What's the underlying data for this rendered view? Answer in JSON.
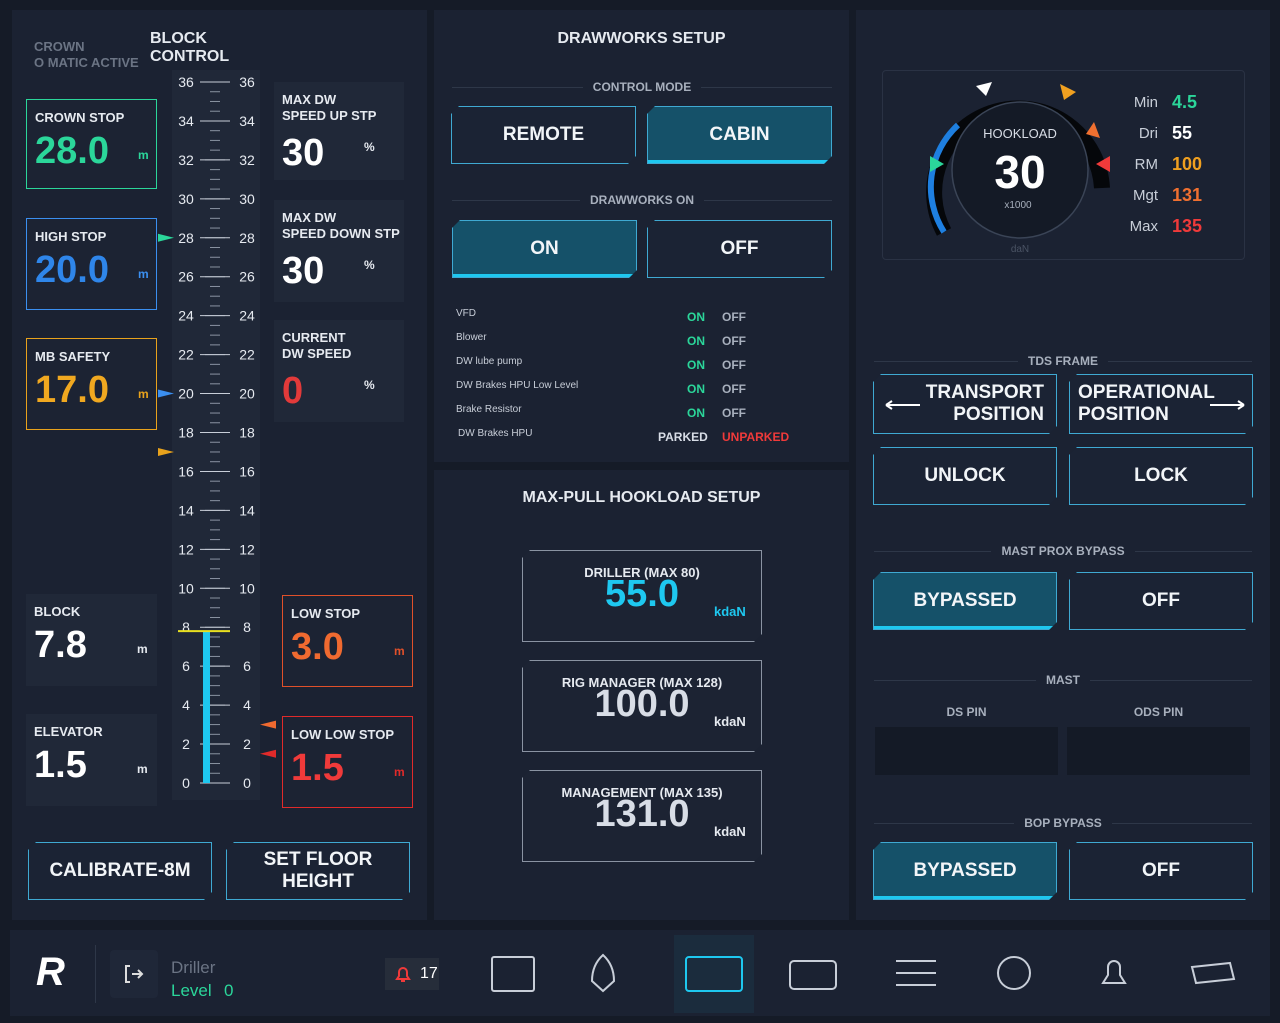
{
  "block_control": {
    "title": "BLOCK CONTROL",
    "crown_status": [
      "CROWN",
      "O MATIC ACTIVE"
    ],
    "crown_stop": {
      "label": "CROWN STOP",
      "value": "28.0",
      "unit": "m"
    },
    "high_stop": {
      "label": "HIGH STOP",
      "value": "20.0",
      "unit": "m"
    },
    "mb_safety": {
      "label": "MB SAFETY",
      "value": "17.0",
      "unit": "m"
    },
    "block": {
      "label": "BLOCK",
      "value": "7.8",
      "unit": "m"
    },
    "elevator": {
      "label": "ELEVATOR",
      "value": "1.5",
      "unit": "m"
    },
    "low_stop": {
      "label": "LOW STOP",
      "value": "3.0",
      "unit": "m"
    },
    "low_low_stop": {
      "label": "LOW LOW STOP",
      "value": "1.5",
      "unit": "m"
    },
    "max_dw_speed_up": {
      "label": [
        "MAX DW",
        "SPEED UP STP"
      ],
      "value": "30",
      "unit": "%"
    },
    "max_dw_speed_down": {
      "label": [
        "MAX DW",
        "SPEED DOWN STP"
      ],
      "value": "30",
      "unit": "%"
    },
    "current_dw_speed": {
      "label": [
        "CURRENT",
        "DW SPEED"
      ],
      "value": "0",
      "unit": "%"
    },
    "scale_ticks": [
      0,
      2,
      4,
      6,
      8,
      10,
      12,
      14,
      16,
      18,
      20,
      22,
      24,
      26,
      28,
      30,
      32,
      34,
      36
    ],
    "buttons": [
      "CALIBRATE-8M",
      "SET FLOOR HEIGHT"
    ]
  },
  "drawworks_setup": {
    "title": "DRAWWORKS SETUP",
    "control_mode": {
      "label": "CONTROL MODE",
      "options": [
        "REMOTE",
        "CABIN"
      ]
    },
    "drawworks_on": {
      "label": "DRAWWORKS ON",
      "options": [
        "ON",
        "OFF"
      ]
    },
    "status": [
      {
        "name": "VFD",
        "on": "ON",
        "off": "OFF"
      },
      {
        "name": "Blower",
        "on": "ON",
        "off": "OFF"
      },
      {
        "name": "DW lube pump",
        "on": "ON",
        "off": "OFF"
      },
      {
        "name": "DW Brakes HPU Low Level",
        "on": "ON",
        "off": "OFF"
      },
      {
        "name": "Brake Resistor",
        "on": "ON",
        "off": "OFF"
      },
      {
        "name": "DW Brakes HPU",
        "on": "PARKED",
        "off": "UNPARKED"
      }
    ]
  },
  "max_pull_setup": {
    "title": "MAX-PULL HOOKLOAD SETUP",
    "entries": [
      {
        "label": "DRILLER (MAX 80)",
        "value": "55.0",
        "unit": "kdaN"
      },
      {
        "label": "RIG MANAGER (MAX 128)",
        "value": "100.0",
        "unit": "kdaN"
      },
      {
        "label": "MANAGEMENT (MAX 135)",
        "value": "131.0",
        "unit": "kdaN"
      }
    ]
  },
  "hookload": {
    "label": "HOOKLOAD",
    "value": "30",
    "multiplier": "x1000",
    "unit": "daN",
    "stats": [
      {
        "label": "Min",
        "value": "4.5"
      },
      {
        "label": "Dri",
        "value": "55"
      },
      {
        "label": "RM",
        "value": "100"
      },
      {
        "label": "Mgt",
        "value": "131"
      },
      {
        "label": "Max",
        "value": "135"
      }
    ]
  },
  "tds_frame": {
    "label": "TDS FRAME",
    "buttons": [
      [
        "TRANSPORT",
        "POSITION"
      ],
      [
        "OPERATIONAL",
        "POSITION"
      ],
      [
        "UNLOCK"
      ],
      [
        "LOCK"
      ]
    ]
  },
  "mast_prox_bypass": {
    "label": "MAST PROX BYPASS",
    "options": [
      "BYPASSED",
      "OFF"
    ]
  },
  "mast": {
    "label": "MAST",
    "pins": [
      "DS PIN",
      "ODS PIN"
    ]
  },
  "bop_bypass": {
    "label": "BOP BYPASS",
    "options": [
      "BYPASSED",
      "OFF"
    ]
  },
  "footer": {
    "logo": "R",
    "user": "Driller",
    "level_label": "Level",
    "level": "0",
    "alarms": "17"
  }
}
